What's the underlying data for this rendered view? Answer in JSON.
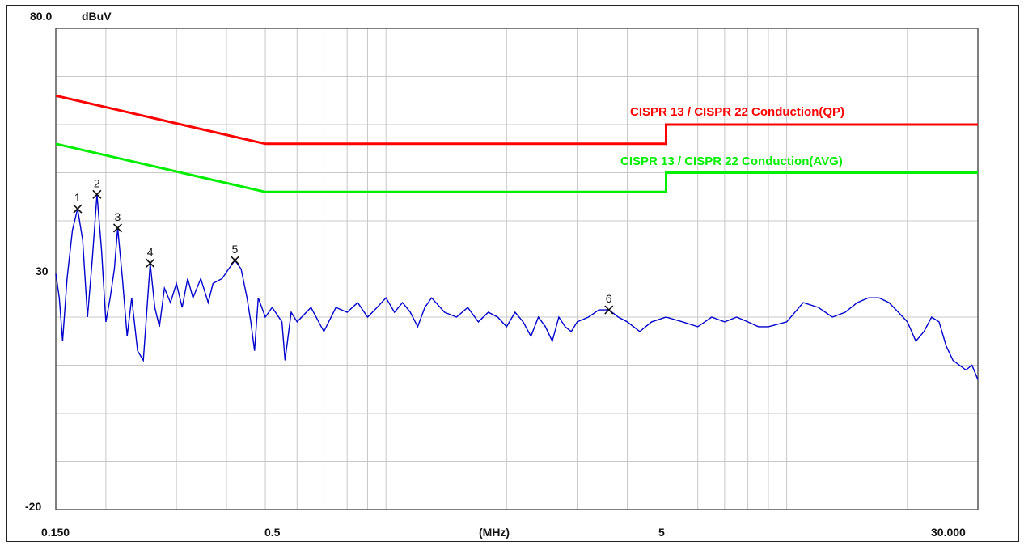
{
  "chart_data": {
    "type": "line",
    "x_scale": "log",
    "y_top_label": "80.0",
    "y_unit": "dBuV",
    "y_mid_label": "30",
    "y_bottom_label": "-20",
    "x_tick_labels": [
      "0.150",
      "0.5",
      "(MHz)",
      "5",
      "30.000"
    ],
    "ylim": [
      -20,
      80
    ],
    "xlim": [
      0.15,
      30
    ],
    "grid": true,
    "colors": {
      "qp": "#ff0000",
      "avg": "#00ee00",
      "trace": "#0000cc",
      "grid": "#c8c8c8"
    },
    "limits": [
      {
        "name": "CISPR 13 / CISPR 22 Conduction(QP)",
        "color": "#ff0000",
        "points": [
          [
            0.15,
            66
          ],
          [
            0.5,
            56
          ],
          [
            5,
            56
          ],
          [
            5,
            60
          ],
          [
            30,
            60
          ]
        ]
      },
      {
        "name": "CISPR 13 / CISPR 22 Conduction(AVG)",
        "color": "#00ee00",
        "points": [
          [
            0.15,
            56
          ],
          [
            0.5,
            46
          ],
          [
            5,
            46
          ],
          [
            5,
            50
          ],
          [
            30,
            50
          ]
        ]
      }
    ],
    "markers": [
      {
        "label": "1",
        "x": 0.17,
        "y": 42.5
      },
      {
        "label": "2",
        "x": 0.19,
        "y": 45.5
      },
      {
        "label": "3",
        "x": 0.214,
        "y": 38.5
      },
      {
        "label": "4",
        "x": 0.258,
        "y": 31.2
      },
      {
        "label": "5",
        "x": 0.42,
        "y": 31.8
      },
      {
        "label": "6",
        "x": 3.6,
        "y": 21.5
      }
    ],
    "series": [
      {
        "values": [
          [
            0.15,
            29
          ],
          [
            0.153,
            24
          ],
          [
            0.156,
            15
          ],
          [
            0.16,
            28
          ],
          [
            0.165,
            38
          ],
          [
            0.17,
            42.5
          ],
          [
            0.175,
            36
          ],
          [
            0.18,
            20
          ],
          [
            0.185,
            32
          ],
          [
            0.19,
            45.5
          ],
          [
            0.195,
            34
          ],
          [
            0.2,
            19
          ],
          [
            0.205,
            24
          ],
          [
            0.21,
            30
          ],
          [
            0.214,
            38.5
          ],
          [
            0.22,
            28
          ],
          [
            0.226,
            16
          ],
          [
            0.232,
            24
          ],
          [
            0.24,
            13
          ],
          [
            0.248,
            11
          ],
          [
            0.258,
            31.2
          ],
          [
            0.265,
            22
          ],
          [
            0.272,
            18
          ],
          [
            0.28,
            26
          ],
          [
            0.29,
            23
          ],
          [
            0.3,
            27
          ],
          [
            0.31,
            22
          ],
          [
            0.32,
            28
          ],
          [
            0.33,
            24
          ],
          [
            0.345,
            28
          ],
          [
            0.36,
            23
          ],
          [
            0.37,
            27
          ],
          [
            0.39,
            28
          ],
          [
            0.405,
            30
          ],
          [
            0.42,
            31.8
          ],
          [
            0.435,
            30
          ],
          [
            0.45,
            24
          ],
          [
            0.46,
            19
          ],
          [
            0.47,
            13
          ],
          [
            0.48,
            24
          ],
          [
            0.5,
            20
          ],
          [
            0.52,
            22
          ],
          [
            0.55,
            19
          ],
          [
            0.56,
            11
          ],
          [
            0.58,
            21
          ],
          [
            0.6,
            19
          ],
          [
            0.65,
            22
          ],
          [
            0.7,
            17
          ],
          [
            0.75,
            22
          ],
          [
            0.8,
            21
          ],
          [
            0.85,
            23
          ],
          [
            0.9,
            20
          ],
          [
            0.95,
            22
          ],
          [
            1.0,
            24
          ],
          [
            1.05,
            21
          ],
          [
            1.1,
            23
          ],
          [
            1.15,
            21
          ],
          [
            1.2,
            18
          ],
          [
            1.25,
            22
          ],
          [
            1.3,
            24
          ],
          [
            1.4,
            21
          ],
          [
            1.5,
            20
          ],
          [
            1.6,
            22
          ],
          [
            1.7,
            19
          ],
          [
            1.8,
            21
          ],
          [
            1.9,
            20
          ],
          [
            2.0,
            18
          ],
          [
            2.1,
            21
          ],
          [
            2.2,
            19
          ],
          [
            2.3,
            16
          ],
          [
            2.4,
            20
          ],
          [
            2.5,
            18
          ],
          [
            2.6,
            15
          ],
          [
            2.7,
            20
          ],
          [
            2.8,
            18
          ],
          [
            2.9,
            17
          ],
          [
            3.0,
            19
          ],
          [
            3.2,
            20
          ],
          [
            3.4,
            21.5
          ],
          [
            3.6,
            21.5
          ],
          [
            3.8,
            20
          ],
          [
            4.0,
            19
          ],
          [
            4.3,
            17
          ],
          [
            4.6,
            19
          ],
          [
            5.0,
            20
          ],
          [
            5.5,
            19
          ],
          [
            6.0,
            18
          ],
          [
            6.5,
            20
          ],
          [
            7.0,
            19
          ],
          [
            7.5,
            20
          ],
          [
            8.0,
            19
          ],
          [
            8.5,
            18
          ],
          [
            9.0,
            18
          ],
          [
            10.0,
            19
          ],
          [
            11.0,
            23
          ],
          [
            12.0,
            22
          ],
          [
            13.0,
            20
          ],
          [
            14.0,
            21
          ],
          [
            15.0,
            23
          ],
          [
            16.0,
            24
          ],
          [
            17.0,
            24
          ],
          [
            18.0,
            23
          ],
          [
            19.0,
            21
          ],
          [
            20.0,
            19
          ],
          [
            21.0,
            15
          ],
          [
            22.0,
            17
          ],
          [
            23.0,
            20
          ],
          [
            24.0,
            19
          ],
          [
            25.0,
            14
          ],
          [
            26.0,
            11
          ],
          [
            27.0,
            10
          ],
          [
            28.0,
            9
          ],
          [
            29.0,
            10
          ],
          [
            30.0,
            7
          ]
        ]
      }
    ]
  }
}
